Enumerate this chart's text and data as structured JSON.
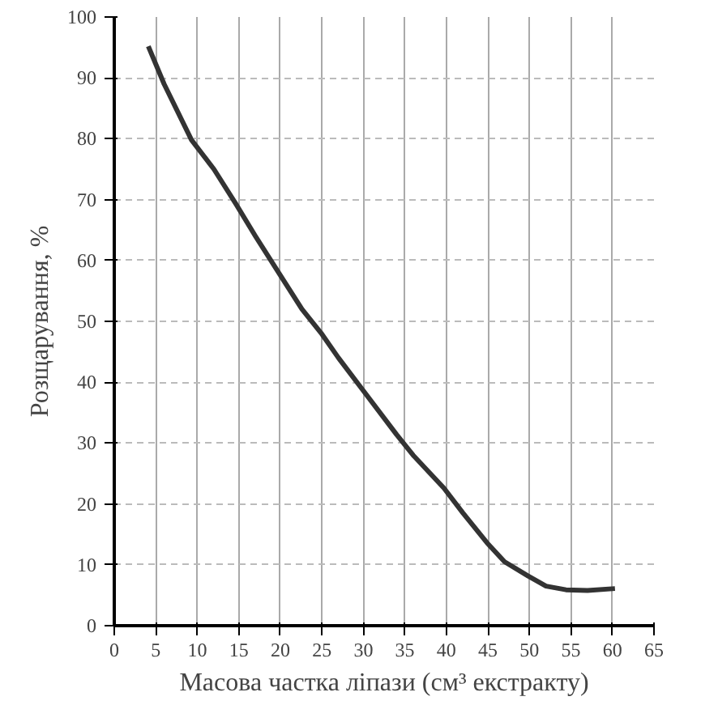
{
  "chart_data": {
    "type": "line",
    "xlabel": "Масова частка ліпази (см³ екстракту)",
    "ylabel": "Розщарування, %",
    "x": [
      4.1,
      6,
      9.3,
      12,
      14.6,
      17,
      19.8,
      22.6,
      24.9,
      27,
      30,
      34,
      36,
      39.7,
      42,
      44.9,
      47,
      49.8,
      52,
      54.4,
      57,
      60.3
    ],
    "series": [
      {
        "color": "#333333",
        "values": [
          95.2,
          89,
          79.8,
          75,
          69.4,
          64,
          58,
          52,
          48.1,
          44,
          38.6,
          31.4,
          28,
          22.6,
          18.5,
          13.6,
          10.5,
          8.2,
          6.5,
          5.9,
          5.8,
          6.1
        ]
      }
    ],
    "xlim": [
      0,
      65
    ],
    "ylim": [
      0,
      100
    ],
    "xticks": [
      0,
      5,
      10,
      15,
      20,
      25,
      30,
      35,
      40,
      45,
      50,
      55,
      60,
      65
    ],
    "yticks": [
      0,
      10,
      20,
      30,
      40,
      50,
      60,
      70,
      80,
      90,
      100
    ],
    "grid": true,
    "line_style": "solid",
    "marker": "none"
  }
}
